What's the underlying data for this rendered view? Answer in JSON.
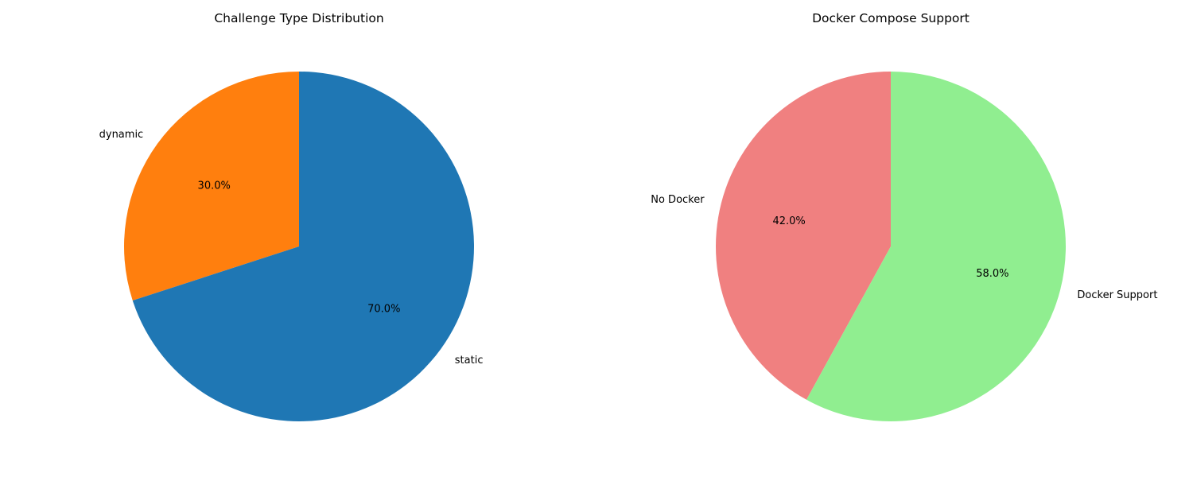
{
  "chart_data": [
    {
      "type": "pie",
      "title": "Challenge Type Distribution",
      "categories": [
        "dynamic",
        "static"
      ],
      "values": [
        30.0,
        70.0
      ],
      "percent_labels": [
        "30.0%",
        "70.0%"
      ],
      "colors": [
        "#ff7f0e",
        "#1f77b4"
      ],
      "start_angle_deg": 90,
      "direction": "counterclockwise"
    },
    {
      "type": "pie",
      "title": "Docker Compose Support",
      "categories": [
        "No Docker",
        "Docker Support"
      ],
      "values": [
        42.0,
        58.0
      ],
      "percent_labels": [
        "42.0%",
        "58.0%"
      ],
      "colors": [
        "#f08080",
        "#90ee90"
      ],
      "start_angle_deg": 90,
      "direction": "counterclockwise"
    }
  ]
}
